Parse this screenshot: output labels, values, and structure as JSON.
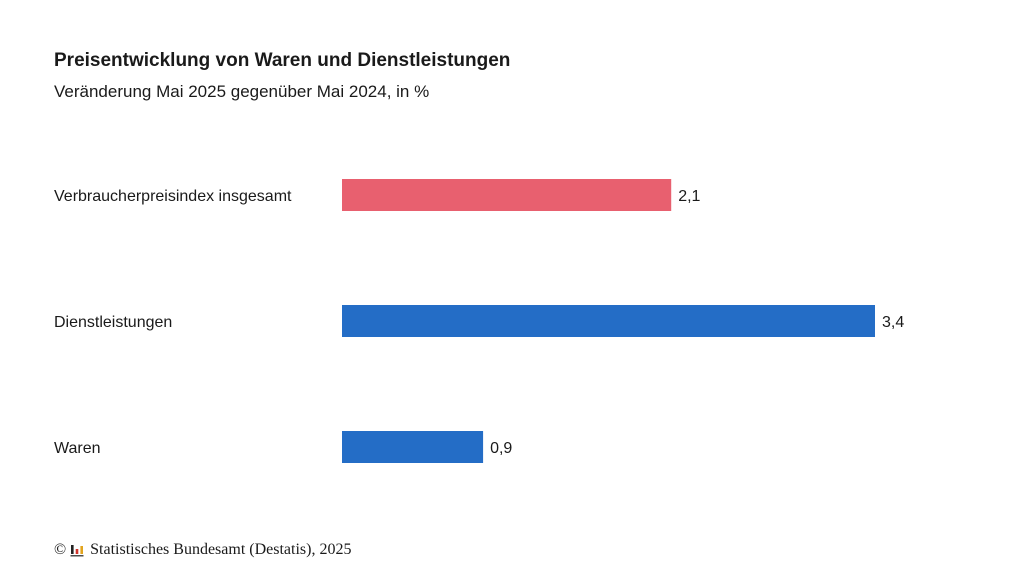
{
  "chart_data": {
    "type": "bar",
    "orientation": "horizontal",
    "title": "Preisentwicklung von Waren und Dienstleistungen",
    "subtitle": "Veränderung Mai 2025 gegenüber Mai 2024, in %",
    "categories": [
      "Verbraucherpreisindex insgesamt",
      "Dienstleistungen",
      "Waren"
    ],
    "values": [
      2.1,
      3.4,
      0.9
    ],
    "value_labels": [
      "2,1",
      "3,4",
      "0,9"
    ],
    "bar_colors": [
      "#e8606f",
      "#246dc6",
      "#246dc6"
    ],
    "xlim": [
      0,
      3.4
    ],
    "grid": false,
    "legend": "none"
  },
  "footer": {
    "copyright_symbol": "©",
    "logo_icon": "destatis-logo-icon",
    "source": "Statistisches Bundesamt (Destatis), 2025"
  }
}
